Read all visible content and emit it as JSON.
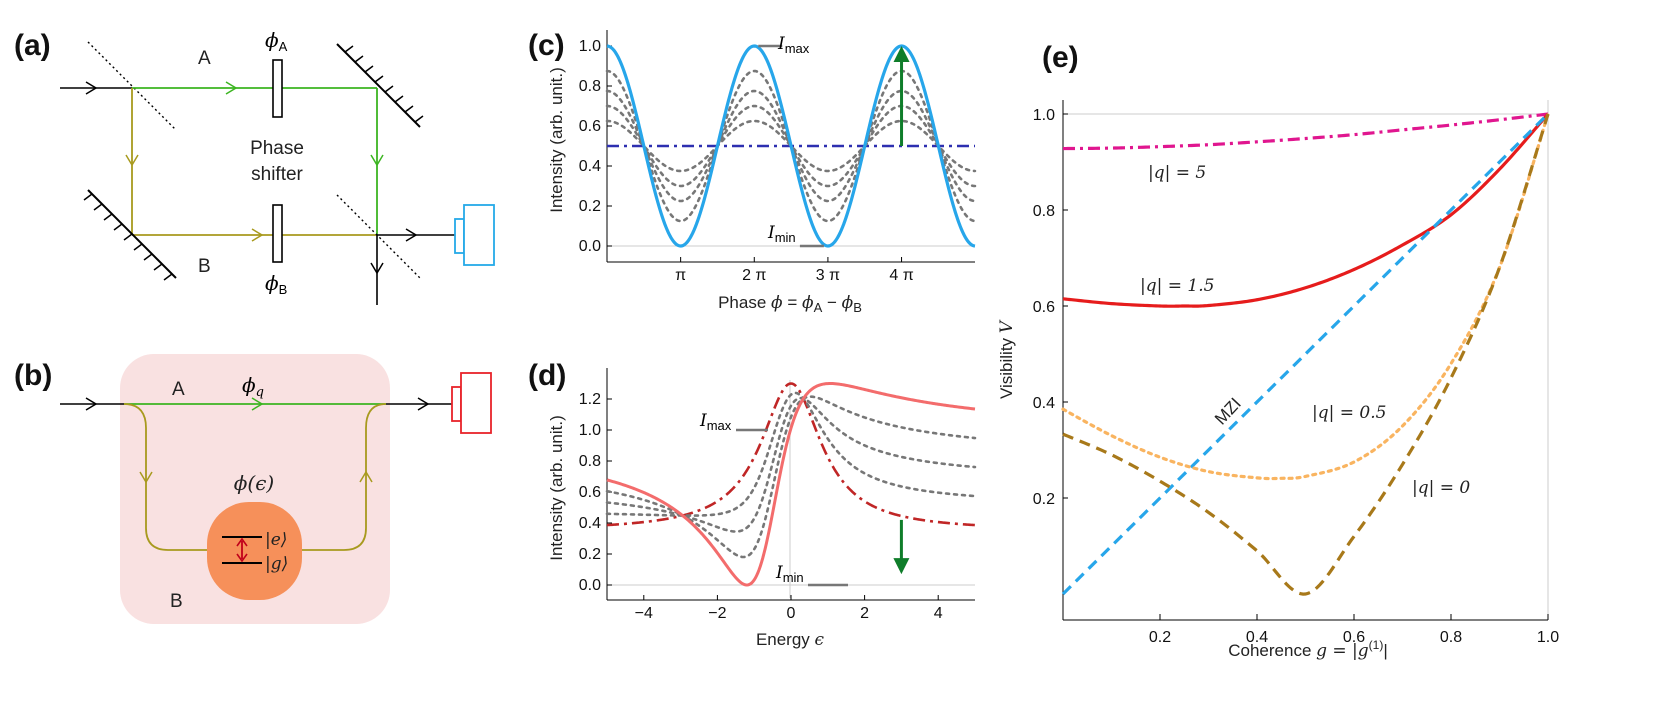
{
  "panel_labels": {
    "a": "(a)",
    "b": "(b)",
    "c": "(c)",
    "d": "(d)",
    "e": "(e)"
  },
  "panel_a": {
    "arm_a": "A",
    "arm_b": "B",
    "phase_a_sym": "ϕ",
    "phase_a_sub": "A",
    "phase_b_sym": "ϕ",
    "phase_b_sub": "B",
    "shifter_line1": "Phase",
    "shifter_line2": "shifter",
    "colors": {
      "arm_a": "#3cb521",
      "arm_b": "#a89a1e",
      "detector": "#25a9e8"
    }
  },
  "panel_b": {
    "arm_a": "A",
    "arm_b": "B",
    "phase_q_sym": "ϕ",
    "phase_q_sub": "q",
    "phase_e": "ϕ(ϵ)",
    "state_e": "|e⟩",
    "state_g": "|g⟩",
    "colors": {
      "background": "#f9e1e1",
      "dot": "#f6905a",
      "detector": "#e8232a"
    }
  },
  "panel_c": {
    "ylabel": "Intensity (arb. unit.)",
    "xlabel_prefix": "Phase ",
    "xlabel_phi": "ϕ",
    "xlabel_eq": " = ",
    "xlabel_phiA": "ϕ",
    "xlabel_subA": "A",
    "xlabel_minus": " − ",
    "xlabel_phiB": "ϕ",
    "xlabel_subB": "B",
    "imax_sym": "I",
    "imax_sub": "max",
    "imin_sym": "I",
    "imin_sub": "min",
    "xtick_labels": [
      "π",
      "2 π",
      "3 π",
      "4 π"
    ],
    "ytick_labels": [
      "0.0",
      "0.2",
      "0.4",
      "0.6",
      "0.8",
      "1.0"
    ]
  },
  "panel_d": {
    "ylabel": "Intensity (arb. unit.)",
    "xlabel": "Energy ",
    "xlabel_sym": "ϵ",
    "imax_sym": "I",
    "imax_sub": "max",
    "imin_sym": "I",
    "imin_sub": "min",
    "xtick_labels": [
      "−4",
      "−2",
      "0",
      "2",
      "4"
    ],
    "ytick_labels": [
      "0.0",
      "0.2",
      "0.4",
      "0.6",
      "0.8",
      "1.0",
      "1.2"
    ]
  },
  "panel_e": {
    "ylabel": "Visibility ",
    "ylabel_sym": "V",
    "xlabel": "Coherence ",
    "xlabel_sym": "g = |g",
    "xlabel_sup": "(1)",
    "xlabel_end": "|",
    "xtick_labels": [
      "0.2",
      "0.4",
      "0.6",
      "0.8",
      "1.0"
    ],
    "ytick_labels": [
      "0.2",
      "0.4",
      "0.6",
      "0.8",
      "1.0"
    ],
    "label_q5": "|q| = 5",
    "label_q15": "|q| = 1.5",
    "label_q05": "|q| = 0.5",
    "label_q0": "|q| = 0",
    "label_mzi": "MZI"
  },
  "chart_data": [
    {
      "type": "line",
      "panel": "c",
      "xlabel": "Phase ϕ = ϕA − ϕB",
      "ylabel": "Intensity (arb. unit.)",
      "xlim": [
        0,
        15.7
      ],
      "ylim": [
        -0.1,
        1.0
      ],
      "function": "I(ϕ) = 0.5 + 0.5·V·cos(ϕ)",
      "series": [
        {
          "visibility": 1.0,
          "color": "#27a6ea",
          "style": "solid"
        },
        {
          "visibility": 0.75,
          "color": "#777777",
          "style": "dotted"
        },
        {
          "visibility": 0.55,
          "color": "#777777",
          "style": "dotted"
        },
        {
          "visibility": 0.4,
          "color": "#777777",
          "style": "dotted"
        },
        {
          "visibility": 0.25,
          "color": "#777777",
          "style": "dotted"
        },
        {
          "visibility": 0.0,
          "color": "#2d2fb0",
          "style": "dashdot"
        }
      ],
      "annotations": {
        "Imax": 1.0,
        "Imin": 0.0,
        "arrow_x": 12.566,
        "arrow_from": 0.5,
        "arrow_to": 1.0
      }
    },
    {
      "type": "line",
      "panel": "d",
      "xlabel": "Energy ϵ",
      "ylabel": "Intensity (arb. unit.)",
      "xlim": [
        -5,
        5
      ],
      "ylim": [
        -0.1,
        1.35
      ],
      "function": "Fano profile blended: V·(q+ϵ)²/(q²·(1+ϵ²)) + (1−V)·0.5·(1 + (ϵ + 1/(2q))... ) ",
      "q": 0.6,
      "series": [
        {
          "coherence": 1.0,
          "color": "#f36c6c",
          "style": "solid"
        },
        {
          "coherence": 0.75,
          "color": "#777777",
          "style": "dotted"
        },
        {
          "coherence": 0.5,
          "color": "#777777",
          "style": "dotted"
        },
        {
          "coherence": 0.25,
          "color": "#777777",
          "style": "dotted"
        },
        {
          "coherence": 0.0,
          "color": "#c02626",
          "style": "dashdot"
        }
      ],
      "annotations": {
        "Imax": 1.0,
        "Imin": 0.0,
        "arrow_x": 3.0,
        "arrow_from": 0.42,
        "arrow_to": 0.07
      }
    },
    {
      "type": "line",
      "panel": "e",
      "xlabel": "Coherence g = |g(1)|",
      "ylabel": "Visibility V",
      "xlim": [
        0,
        1.0
      ],
      "ylim": [
        0,
        1.05
      ],
      "series": [
        {
          "name": "|q| = 5",
          "color": "#e0168f",
          "style": "dashdot",
          "x": [
            0,
            0.1,
            0.2,
            0.3,
            0.4,
            0.5,
            0.6,
            0.7,
            0.8,
            0.9,
            1.0
          ],
          "y": [
            0.928,
            0.929,
            0.932,
            0.936,
            0.942,
            0.949,
            0.957,
            0.967,
            0.977,
            0.988,
            1.0
          ]
        },
        {
          "name": "|q| = 1.5",
          "color": "#e61c1c",
          "style": "solid",
          "x": [
            0,
            0.1,
            0.2,
            0.25,
            0.3,
            0.4,
            0.5,
            0.6,
            0.7,
            0.8,
            0.9,
            1.0
          ],
          "y": [
            0.615,
            0.605,
            0.6,
            0.6,
            0.601,
            0.613,
            0.638,
            0.676,
            0.727,
            0.79,
            0.885,
            1.0
          ]
        },
        {
          "name": "MZI",
          "color": "#27a6ea",
          "style": "dashed",
          "x": [
            0,
            1.0
          ],
          "y": [
            0,
            1.0
          ]
        },
        {
          "name": "|q| = 0.5",
          "color": "#f9b460",
          "style": "dotted",
          "x": [
            0,
            0.1,
            0.2,
            0.3,
            0.4,
            0.45,
            0.5,
            0.6,
            0.7,
            0.8,
            0.9,
            1.0
          ],
          "y": [
            0.385,
            0.33,
            0.285,
            0.255,
            0.242,
            0.241,
            0.245,
            0.275,
            0.35,
            0.48,
            0.68,
            1.0
          ]
        },
        {
          "name": "|q| = 0",
          "color": "#a8791a",
          "style": "dashed",
          "x": [
            0,
            0.1,
            0.2,
            0.3,
            0.4,
            0.5,
            0.6,
            0.7,
            0.8,
            0.9,
            1.0
          ],
          "y": [
            0.333,
            0.29,
            0.235,
            0.17,
            0.09,
            0.0,
            0.12,
            0.27,
            0.45,
            0.68,
            1.0
          ]
        }
      ],
      "grid": "reference lines at V = 1.0 and g = 1.0"
    }
  ]
}
